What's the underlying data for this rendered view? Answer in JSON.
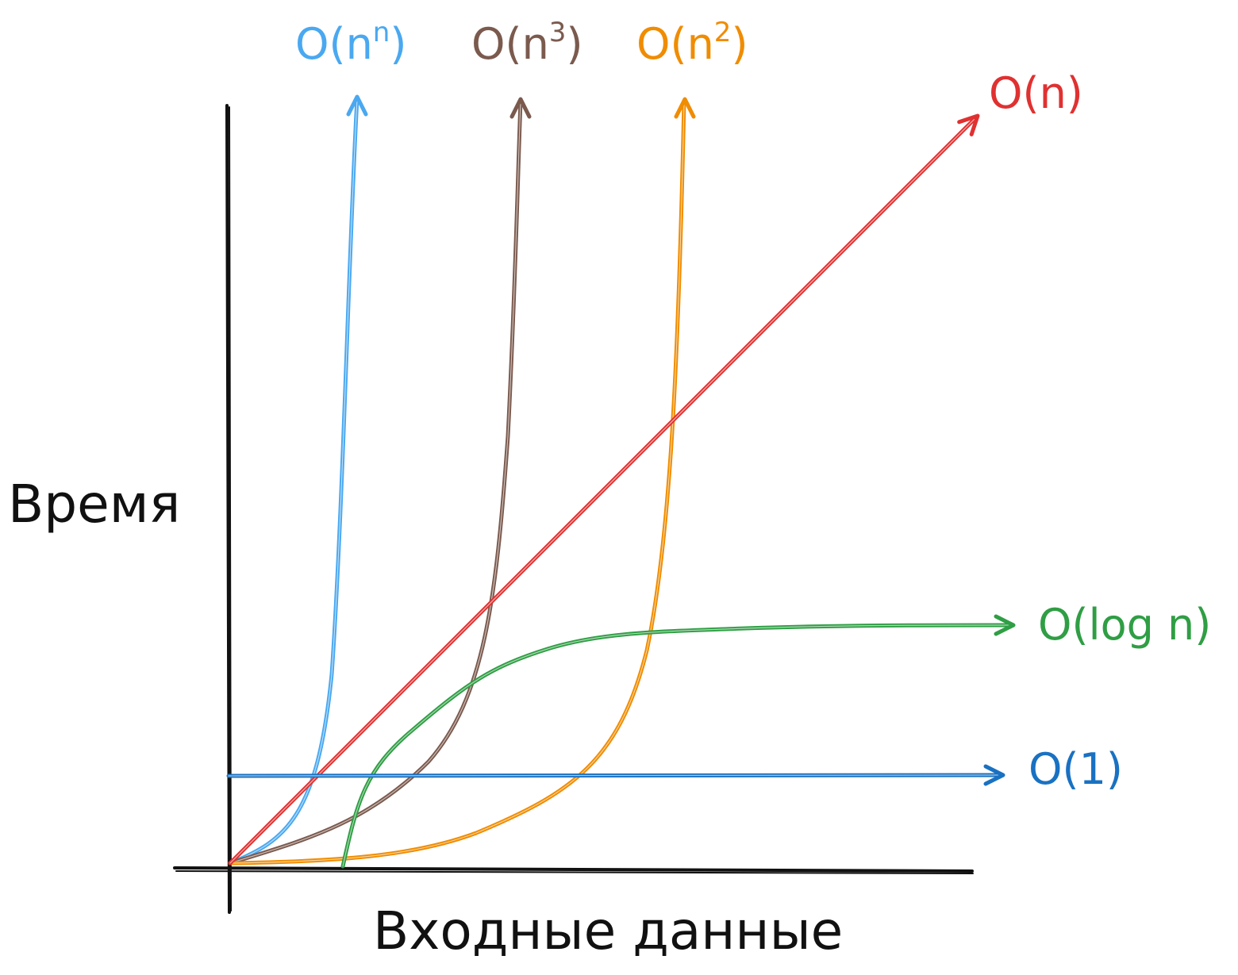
{
  "chart_data": {
    "type": "line",
    "xlabel": "Входные данные",
    "ylabel": "Время",
    "grid": false,
    "series": [
      {
        "name": "O(n^n)",
        "label_base": "O(n",
        "label_sup": "n",
        "label_close": ")",
        "color": "#4aa8f0",
        "key": "nn"
      },
      {
        "name": "O(n^3)",
        "label_base": "O(n",
        "label_sup": "3",
        "label_close": ")",
        "color": "#7b5a4e",
        "key": "n3"
      },
      {
        "name": "O(n^2)",
        "label_base": "O(n",
        "label_sup": "2",
        "label_close": ")",
        "color": "#f08c00",
        "key": "n2"
      },
      {
        "name": "O(n)",
        "label_base": "O(n)",
        "label_sup": "",
        "label_close": "",
        "color": "#e03131",
        "key": "n"
      },
      {
        "name": "O(log n)",
        "label_base": "O(log n)",
        "label_sup": "",
        "label_close": "",
        "color": "#2f9e44",
        "key": "logn"
      },
      {
        "name": "O(1)",
        "label_base": "O(1)",
        "label_sup": "",
        "label_close": "",
        "color": "#1971c2",
        "key": "c"
      }
    ]
  }
}
